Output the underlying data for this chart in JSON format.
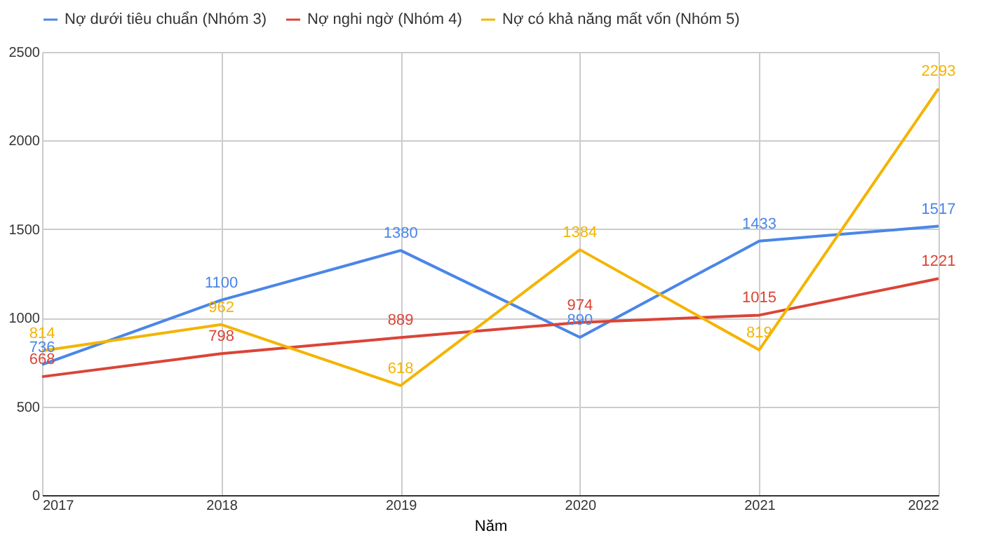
{
  "chart_data": {
    "type": "line",
    "xlabel": "Năm",
    "x": [
      2017,
      2018,
      2019,
      2020,
      2021,
      2022
    ],
    "series": [
      {
        "name": "Nợ dưới tiêu chuẩn (Nhóm 3)",
        "color": "#4a86e8",
        "values": [
          736,
          1100,
          1380,
          890,
          1433,
          1517
        ]
      },
      {
        "name": "Nợ nghi ngờ (Nhóm 4)",
        "color": "#db4437",
        "values": [
          668,
          798,
          889,
          974,
          1015,
          1221
        ]
      },
      {
        "name": "Nợ có khả năng mất vốn (Nhóm 5)",
        "color": "#f4b400",
        "values": [
          814,
          962,
          618,
          1384,
          819,
          2293
        ]
      }
    ],
    "xlim": [
      2017,
      2022
    ],
    "xticks": [
      2017,
      2018,
      2019,
      2020,
      2021,
      2022
    ],
    "ylim": [
      0,
      2500
    ],
    "yticks": [
      0,
      500,
      1000,
      1500,
      2000,
      2500
    ],
    "grid": true,
    "legend": "top",
    "data_labels": true,
    "marker": "none",
    "line_style": "solid"
  }
}
